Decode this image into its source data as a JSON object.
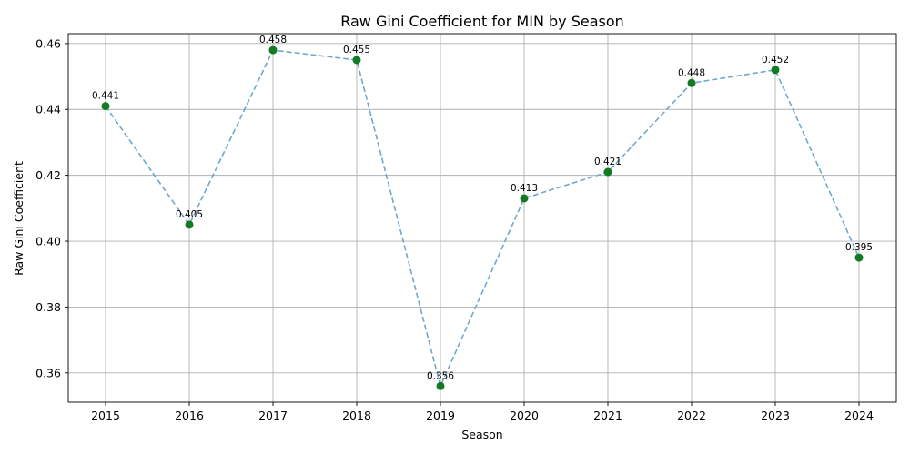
{
  "chart_data": {
    "type": "line",
    "title": "Raw Gini Coefficient for MIN by Season",
    "xlabel": "Season",
    "ylabel": "Raw Gini Coefficient",
    "x": [
      "2015",
      "2016",
      "2017",
      "2018",
      "2019",
      "2020",
      "2021",
      "2022",
      "2023",
      "2024"
    ],
    "series": [
      {
        "values": [
          0.441,
          0.405,
          0.458,
          0.455,
          0.356,
          0.413,
          0.421,
          0.448,
          0.452,
          0.395
        ],
        "labels": [
          "0.441",
          "0.405",
          "0.458",
          "0.455",
          "0.356",
          "0.413",
          "0.421",
          "0.448",
          "0.452",
          "0.395"
        ],
        "line_color": "#6fa8cc",
        "line_style": "dashed",
        "marker_color": "#117a22"
      }
    ],
    "yticks": [
      "0.36",
      "0.38",
      "0.40",
      "0.42",
      "0.44",
      "0.46"
    ],
    "ylim": [
      0.3511,
      0.463
    ],
    "grid": true,
    "legend": "none"
  }
}
